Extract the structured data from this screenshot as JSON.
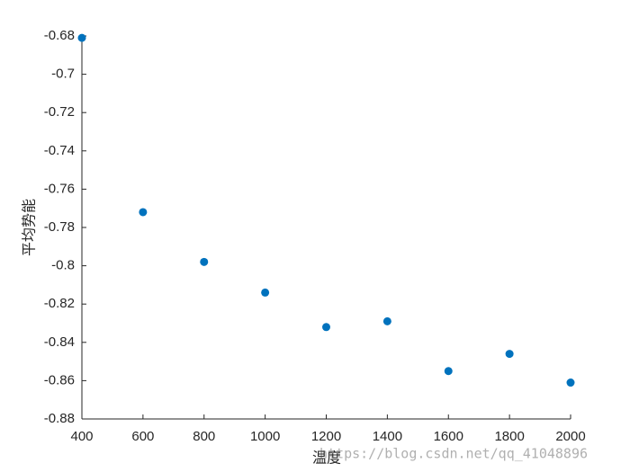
{
  "chart_data": {
    "type": "scatter",
    "x_label": "温度",
    "y_label": "平均势能",
    "x": [
      400,
      600,
      800,
      1000,
      1200,
      1400,
      1600,
      1800,
      2000
    ],
    "series": [
      {
        "color": "#0072bd",
        "values": [
          -0.681,
          -0.772,
          -0.798,
          -0.814,
          -0.832,
          -0.829,
          -0.855,
          -0.846,
          -0.861
        ]
      }
    ],
    "xlim": [
      400,
      2000
    ],
    "xticks": [
      400,
      600,
      800,
      1000,
      1200,
      1400,
      1600,
      1800,
      2000
    ],
    "ylim": [
      -0.88,
      -0.68
    ],
    "yticks": [
      -0.88,
      -0.86,
      -0.84,
      -0.82,
      -0.8,
      -0.78,
      -0.76,
      -0.74,
      -0.72,
      -0.7,
      -0.68
    ],
    "grid": false
  },
  "watermark": "https://blog.csdn.net/qq_41048896"
}
